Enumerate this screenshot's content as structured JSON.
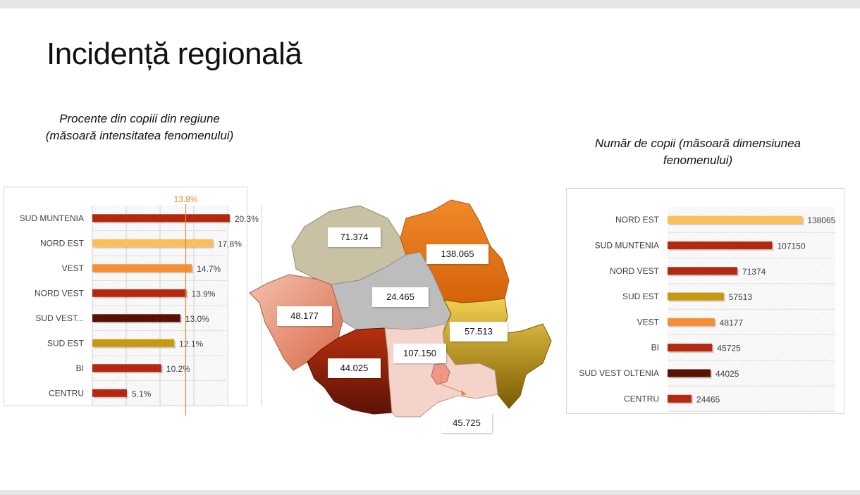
{
  "title": "Incidență regională",
  "left_chart": {
    "subtitle": "Procente din copiii din regiune\n(măsoară intensitatea fenomenului)",
    "reference_label": "13.8%"
  },
  "right_chart": {
    "subtitle_line1": "Număr de copii (măsoară dimensiunea",
    "subtitle_line2": "fenomenului)"
  },
  "map": {
    "labels": [
      {
        "region": "NORD VEST",
        "value": "71.374",
        "color": "#c9c1a4"
      },
      {
        "region": "NORD EST",
        "value": "138.065",
        "color": "#ea7a1e"
      },
      {
        "region": "CENTRU",
        "value": "24.465",
        "color": "#bdbdbd"
      },
      {
        "region": "VEST",
        "value": "48.177",
        "color": "#e7a189"
      },
      {
        "region": "SUD EST",
        "value": "57.513",
        "color": "#d8a820"
      },
      {
        "region": "SUD VEST OLTENIA",
        "value": "44.025",
        "color": "#a3220c"
      },
      {
        "region": "SUD MUNTENIA",
        "value": "107.150",
        "color": "#f3d3ca"
      },
      {
        "region": "BI",
        "value": "45.725",
        "color": "#f09888"
      }
    ]
  },
  "chart_data": [
    {
      "type": "bar",
      "orientation": "horizontal",
      "categories": [
        "SUD MUNTENIA",
        "NORD EST",
        "VEST",
        "NORD VEST",
        "SUD VEST...",
        "SUD EST",
        "BI",
        "CENTRU"
      ],
      "values": [
        20.3,
        17.8,
        14.7,
        13.9,
        13.0,
        12.1,
        10.2,
        5.1
      ],
      "value_labels": [
        "20.3%",
        "17.8%",
        "14.7%",
        "13.9%",
        "13.0%",
        "12.1%",
        "10.2%",
        "5.1%"
      ],
      "colors": [
        "#b3280f",
        "#fbbf57",
        "#f58f35",
        "#b3280f",
        "#5a1005",
        "#c9980e",
        "#b3280f",
        "#b3280f"
      ],
      "reference_line": 13.8,
      "reference_color": "#e08a30",
      "xlim": [
        0,
        25
      ],
      "grid": true
    },
    {
      "type": "bar",
      "orientation": "horizontal",
      "categories": [
        "NORD EST",
        "SUD MUNTENIA",
        "NORD VEST",
        "SUD EST",
        "VEST",
        "BI",
        "SUD VEST OLTENIA",
        "CENTRU"
      ],
      "values": [
        138065,
        107150,
        71374,
        57513,
        48177,
        45725,
        44025,
        24465
      ],
      "value_labels": [
        "138065",
        "107150",
        "71374",
        "57513",
        "48177",
        "45725",
        "44025",
        "24465"
      ],
      "colors": [
        "#fbbf57",
        "#b3280f",
        "#b3280f",
        "#c9980e",
        "#f58f35",
        "#b3280f",
        "#5a1005",
        "#b3280f"
      ],
      "xlim": [
        0,
        140000
      ],
      "grid": false
    }
  ]
}
